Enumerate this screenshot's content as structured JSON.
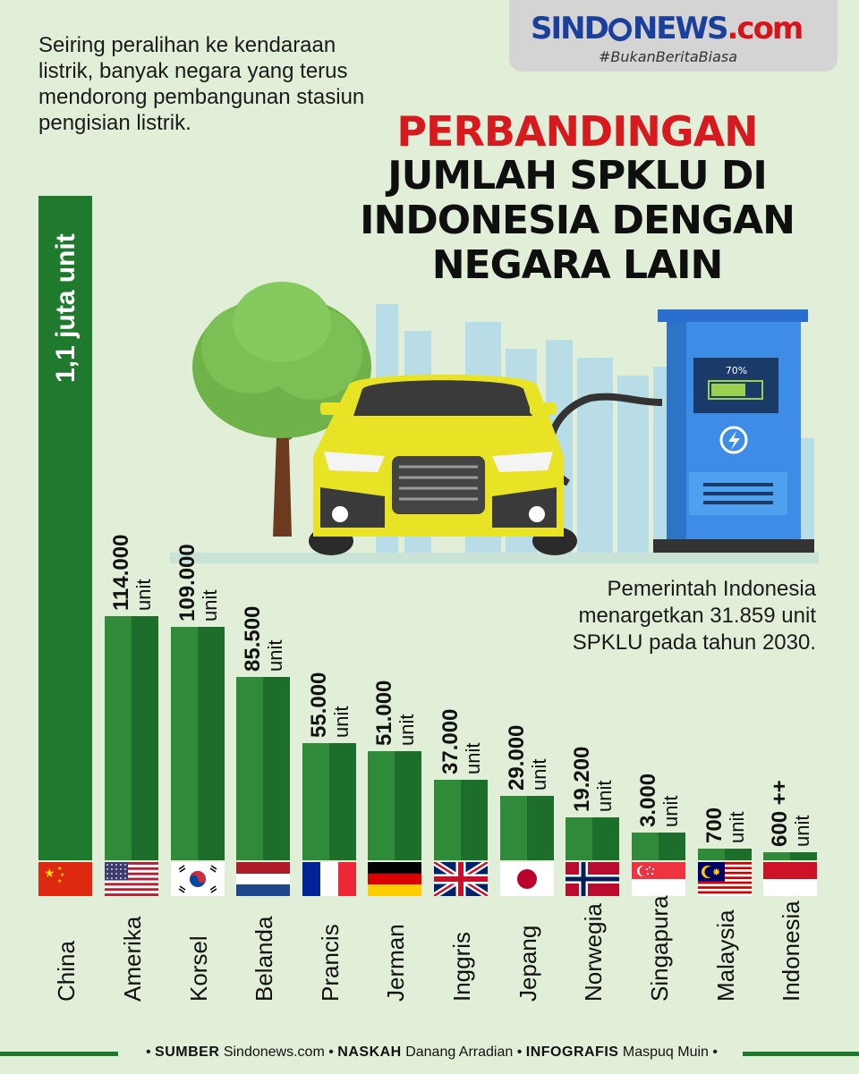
{
  "brand": {
    "logo_left": "SIND",
    "logo_right": "NEWS",
    "logo_dot": ".com",
    "tagline": "#BukanBeritaBiasa"
  },
  "intro": "Seiring peralihan ke kendaraan listrik, banyak negara yang terus mendorong pembangunan stasiun pengisian listrik.",
  "title": {
    "line1": "PERBANDINGAN",
    "line2": "JUMLAH SPKLU DI",
    "line3": "INDONESIA DENGAN",
    "line4": "NEGARA LAIN"
  },
  "illustration": {
    "battery_label": "70%",
    "battery_level": 0.7
  },
  "note": "Pemerintah Indonesia menargetkan 31.859 unit SPKLU pada tahun 2030.",
  "colors": {
    "bar": "#2f8a3a",
    "bar_dark": "#1d6e2a",
    "title_red": "#d61a1f",
    "background": "#e2efd8"
  },
  "chart_data": {
    "type": "bar",
    "categories": [
      "China",
      "Amerika",
      "Korsel",
      "Belanda",
      "Prancis",
      "Jerman",
      "Inggris",
      "Jepang",
      "Norwegia",
      "Singapura",
      "Malaysia",
      "Indonesia"
    ],
    "values": [
      1100000,
      114000,
      109000,
      85500,
      55000,
      51000,
      37000,
      29000,
      19200,
      3000,
      700,
      600
    ],
    "value_labels": [
      "1,1 juta unit",
      "114.000",
      "109.000",
      "85.500",
      "55.000",
      "51.000",
      "37.000",
      "29.000",
      "19.200",
      "3.000",
      "700",
      "600 ++"
    ],
    "unit": "unit",
    "flags": [
      "china-flag",
      "usa-flag",
      "south-korea-flag",
      "netherlands-flag",
      "france-flag",
      "germany-flag",
      "uk-flag",
      "japan-flag",
      "norway-flag",
      "singapore-flag",
      "malaysia-flag",
      "indonesia-flag"
    ],
    "title": "PERBANDINGAN JUMLAH SPKLU DI INDONESIA DENGAN NEGARA LAIN",
    "xlabel": "",
    "ylabel": ""
  },
  "footer": {
    "source_label": "SUMBER",
    "source": "Sindonews.com",
    "writer_label": "NASKAH",
    "writer": "Danang Arradian",
    "graphic_label": "INFOGRAFIS",
    "graphic": "Maspuq Muin"
  }
}
